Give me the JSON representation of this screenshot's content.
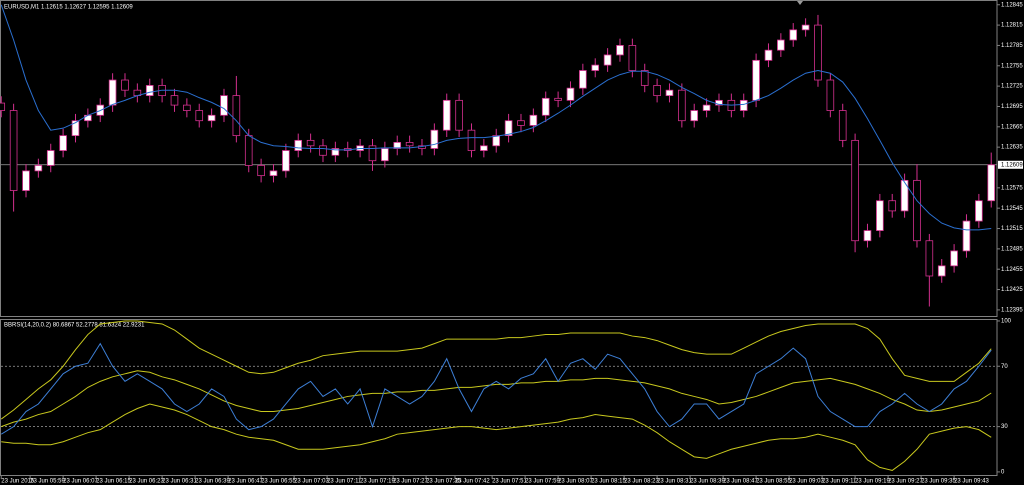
{
  "chart_data": [
    {
      "type": "candlestick",
      "title": "EURUSD,M1  1.12615 1.12627 1.12595 1.12609",
      "x": [
        1,
        4,
        7,
        10,
        13,
        16,
        19,
        22,
        25,
        28,
        31,
        34,
        37,
        40,
        43,
        46,
        49,
        52,
        55,
        58,
        61,
        64,
        67,
        70,
        73,
        76,
        79,
        82,
        85,
        88,
        91,
        94,
        97,
        100,
        103,
        106,
        109,
        112,
        115,
        118,
        121,
        124,
        127,
        130,
        133,
        136,
        139,
        142,
        145,
        148,
        151,
        154,
        157,
        160,
        163,
        166,
        169,
        172,
        175,
        178,
        181,
        184,
        187,
        190,
        193,
        196,
        199,
        202,
        205,
        208,
        211,
        214,
        217,
        220,
        223,
        226,
        229,
        232,
        235,
        238,
        241
      ],
      "open": [
        1.127,
        1.12689,
        1.12571,
        1.126,
        1.12608,
        1.1263,
        1.12652,
        1.12674,
        1.12682,
        1.12697,
        1.12734,
        1.12719,
        1.12711,
        1.12726,
        1.12711,
        1.12697,
        1.12689,
        1.12674,
        1.12682,
        1.12711,
        1.12652,
        1.12608,
        1.12593,
        1.126,
        1.1263,
        1.12645,
        1.12637,
        1.12623,
        1.12633,
        1.1263,
        1.12637,
        1.12615,
        1.12633,
        1.12642,
        1.12637,
        1.12633,
        1.1266,
        1.12704,
        1.1266,
        1.1263,
        1.12637,
        1.12652,
        1.12674,
        1.12667,
        1.12682,
        1.12707,
        1.12704,
        1.12722,
        1.12748,
        1.12756,
        1.12771,
        1.12785,
        1.12748,
        1.12726,
        1.12711,
        1.12719,
        1.12674,
        1.12689,
        1.12697,
        1.12704,
        1.12689,
        1.12704,
        1.12763,
        1.12778,
        1.12793,
        1.12808,
        1.12815,
        1.12734,
        1.12689,
        1.12645,
        1.12497,
        1.12512,
        1.12556,
        1.12541,
        1.12586,
        1.12497,
        1.12445,
        1.1246,
        1.12482,
        1.12526,
        1.12556
      ],
      "high": [
        1.1271,
        1.12699,
        1.1261,
        1.12618,
        1.1264,
        1.12662,
        1.12684,
        1.12692,
        1.12707,
        1.12744,
        1.12744,
        1.12729,
        1.12736,
        1.12736,
        1.12721,
        1.12707,
        1.12699,
        1.12692,
        1.12721,
        1.1274,
        1.12662,
        1.12618,
        1.1261,
        1.1264,
        1.12655,
        1.12655,
        1.12647,
        1.12643,
        1.12643,
        1.12647,
        1.12647,
        1.12643,
        1.12652,
        1.12652,
        1.12647,
        1.1267,
        1.12714,
        1.12714,
        1.1267,
        1.12647,
        1.12662,
        1.12684,
        1.12684,
        1.12692,
        1.12717,
        1.12717,
        1.12732,
        1.12758,
        1.12766,
        1.12781,
        1.12795,
        1.12795,
        1.12758,
        1.12736,
        1.12729,
        1.12729,
        1.12699,
        1.12707,
        1.12714,
        1.12714,
        1.12714,
        1.12773,
        1.12788,
        1.12803,
        1.12818,
        1.12825,
        1.1283,
        1.12744,
        1.12699,
        1.12655,
        1.12522,
        1.12566,
        1.12566,
        1.12596,
        1.1261,
        1.12507,
        1.1247,
        1.12492,
        1.12536,
        1.12566,
        1.12627
      ],
      "low": [
        1.12679,
        1.1254,
        1.12561,
        1.1259,
        1.12598,
        1.1262,
        1.12642,
        1.12664,
        1.12672,
        1.12687,
        1.12709,
        1.12701,
        1.12701,
        1.12701,
        1.12687,
        1.12679,
        1.12664,
        1.12664,
        1.12672,
        1.12642,
        1.12598,
        1.12583,
        1.12583,
        1.1259,
        1.1262,
        1.12627,
        1.12613,
        1.12613,
        1.1262,
        1.1262,
        1.126,
        1.12605,
        1.12623,
        1.12627,
        1.12623,
        1.12623,
        1.1265,
        1.1265,
        1.1262,
        1.1262,
        1.12627,
        1.12642,
        1.12657,
        1.12657,
        1.12672,
        1.12694,
        1.12694,
        1.12712,
        1.12738,
        1.12746,
        1.12761,
        1.12738,
        1.12716,
        1.12701,
        1.12701,
        1.12664,
        1.12664,
        1.12679,
        1.12687,
        1.12679,
        1.12679,
        1.12694,
        1.12753,
        1.12768,
        1.12783,
        1.12798,
        1.12724,
        1.12679,
        1.12635,
        1.1248,
        1.12487,
        1.12502,
        1.12531,
        1.12531,
        1.12487,
        1.124,
        1.12435,
        1.1245,
        1.12472,
        1.12516,
        1.12546
      ],
      "close": [
        1.12689,
        1.12571,
        1.126,
        1.12608,
        1.1263,
        1.12652,
        1.12674,
        1.12682,
        1.12697,
        1.12734,
        1.12719,
        1.12711,
        1.12726,
        1.12711,
        1.12697,
        1.12689,
        1.12674,
        1.12682,
        1.12711,
        1.12652,
        1.12608,
        1.12593,
        1.126,
        1.1263,
        1.12645,
        1.12637,
        1.12623,
        1.12633,
        1.1263,
        1.12637,
        1.12615,
        1.12633,
        1.12642,
        1.12637,
        1.12633,
        1.1266,
        1.12704,
        1.1266,
        1.1263,
        1.12637,
        1.12652,
        1.12674,
        1.12667,
        1.12682,
        1.12707,
        1.12704,
        1.12722,
        1.12748,
        1.12756,
        1.12771,
        1.12785,
        1.12748,
        1.12726,
        1.12711,
        1.12719,
        1.12674,
        1.12689,
        1.12697,
        1.12704,
        1.12689,
        1.12704,
        1.12763,
        1.12778,
        1.12793,
        1.12808,
        1.12815,
        1.12734,
        1.12689,
        1.12645,
        1.12497,
        1.12512,
        1.12556,
        1.12541,
        1.12586,
        1.12497,
        1.12445,
        1.1246,
        1.12482,
        1.12526,
        1.12556,
        1.12609
      ],
      "series": [
        {
          "color": "#2a6fd0",
          "values": [
            1.12845,
            1.12793,
            1.12734,
            1.12689,
            1.1266,
            1.12663,
            1.12671,
            1.12682,
            1.12689,
            1.12698,
            1.12704,
            1.12711,
            1.12716,
            1.12719,
            1.12719,
            1.12716,
            1.12708,
            1.12701,
            1.12692,
            1.12674,
            1.12652,
            1.12642,
            1.12637,
            1.12636,
            1.12634,
            1.12633,
            1.12633,
            1.12631,
            1.12631,
            1.12633,
            1.12633,
            1.12634,
            1.12634,
            1.12634,
            1.12636,
            1.12639,
            1.12645,
            1.12648,
            1.12649,
            1.12649,
            1.12651,
            1.12654,
            1.12658,
            1.12664,
            1.12674,
            1.12685,
            1.12697,
            1.1271,
            1.12722,
            1.12734,
            1.12742,
            1.12747,
            1.12747,
            1.12742,
            1.12734,
            1.12723,
            1.12714,
            1.12704,
            1.12698,
            1.12697,
            1.12698,
            1.12704,
            1.12711,
            1.12722,
            1.12734,
            1.12744,
            1.12748,
            1.12744,
            1.12731,
            1.12707,
            1.12677,
            1.12645,
            1.12612,
            1.12583,
            1.12556,
            1.12537,
            1.12523,
            1.12516,
            1.12513,
            1.12513,
            1.12515
          ]
        }
      ],
      "up_color": "#ffffff",
      "down_color": "#000000",
      "wick_color": "#d4308f",
      "last_price": 1.12609,
      "xlim": [
        0.7,
        242.4
      ],
      "ylim": [
        1.12386,
        1.12852
      ],
      "yticks": [
        1.12845,
        1.12815,
        1.12785,
        1.12755,
        1.12725,
        1.12695,
        1.12665,
        1.12635,
        1.12575,
        1.12545,
        1.12515,
        1.12485,
        1.12455,
        1.12425,
        1.12395
      ],
      "grid": false
    },
    {
      "type": "line",
      "title": "BBRSI(14,20,0.2) 80.6867 52.2778 81.6324 22.9231",
      "x": [
        1,
        4,
        7,
        10,
        13,
        16,
        19,
        22,
        25,
        28,
        31,
        34,
        37,
        40,
        43,
        46,
        49,
        52,
        55,
        58,
        61,
        64,
        67,
        70,
        73,
        76,
        79,
        82,
        85,
        88,
        91,
        94,
        97,
        100,
        103,
        106,
        109,
        112,
        115,
        118,
        121,
        124,
        127,
        130,
        133,
        136,
        139,
        142,
        145,
        148,
        151,
        154,
        157,
        160,
        163,
        166,
        169,
        172,
        175,
        178,
        181,
        184,
        187,
        190,
        193,
        196,
        199,
        202,
        205,
        208,
        211,
        214,
        217,
        220,
        223,
        226,
        229,
        232,
        235,
        238,
        241
      ],
      "series": [
        {
          "color": "#c8c81e",
          "values": [
            35,
            41,
            48,
            55,
            61,
            70,
            81,
            91,
            98,
            99,
            100,
            100,
            99,
            98,
            94,
            88,
            82,
            78,
            74,
            70,
            66,
            65,
            66,
            69,
            72,
            74,
            77,
            78,
            79,
            80,
            80,
            80,
            80,
            81,
            82,
            85,
            88,
            88,
            88,
            88,
            88,
            89,
            89,
            90,
            91,
            91,
            92,
            92,
            92,
            92,
            92,
            90,
            89,
            87,
            84,
            81,
            79,
            78,
            78,
            78,
            82,
            86,
            90,
            93,
            95,
            97,
            98,
            98,
            98,
            98,
            95,
            88,
            75,
            64,
            62,
            60,
            60,
            60,
            66,
            72,
            81.63
          ]
        },
        {
          "color": "#c8c81e",
          "values": [
            30,
            33,
            35,
            38,
            40,
            45,
            50,
            56,
            60,
            63,
            65,
            67,
            66,
            63,
            61,
            58,
            55,
            51,
            47,
            44,
            42,
            40,
            40,
            41,
            42,
            44,
            46,
            48,
            50,
            51,
            52,
            52,
            53,
            53,
            54,
            54,
            55,
            56,
            56,
            57,
            58,
            58,
            59,
            59,
            60,
            60,
            61,
            61,
            62,
            62,
            61,
            60,
            59,
            57,
            55,
            52,
            50,
            48,
            45,
            46,
            48,
            50,
            53,
            56,
            59,
            60,
            61,
            62,
            60,
            58,
            55,
            52,
            48,
            45,
            41,
            40,
            41,
            43,
            45,
            47,
            52.28
          ]
        },
        {
          "color": "#c8c81e",
          "values": [
            20,
            19,
            19,
            18,
            18,
            20,
            23,
            26,
            28,
            33,
            38,
            42,
            45,
            43,
            41,
            38,
            34,
            30,
            28,
            25,
            23,
            22,
            21,
            18,
            15,
            15,
            15,
            16,
            17,
            18,
            20,
            22,
            25,
            26,
            27,
            28,
            29,
            30,
            30,
            29,
            28,
            29,
            30,
            31,
            32,
            33,
            35,
            36,
            38,
            37,
            36,
            35,
            31,
            26,
            20,
            15,
            10,
            9,
            12,
            15,
            17,
            19,
            21,
            22,
            22,
            23,
            25,
            23,
            21,
            18,
            8,
            3,
            1,
            7,
            15,
            25,
            27,
            29,
            30,
            28,
            22.92
          ]
        },
        {
          "color": "#3d7fd6",
          "values": [
            25,
            30,
            40,
            45,
            55,
            65,
            70,
            72,
            85,
            70,
            60,
            65,
            60,
            55,
            45,
            40,
            45,
            55,
            50,
            35,
            28,
            30,
            35,
            45,
            55,
            60,
            50,
            55,
            45,
            55,
            30,
            55,
            50,
            45,
            50,
            60,
            75,
            55,
            40,
            55,
            60,
            55,
            62,
            65,
            75,
            60,
            72,
            75,
            68,
            78,
            75,
            65,
            55,
            40,
            30,
            35,
            45,
            45,
            35,
            40,
            45,
            65,
            70,
            75,
            82,
            75,
            50,
            40,
            35,
            30,
            30,
            40,
            45,
            52,
            45,
            40,
            45,
            55,
            60,
            70,
            80.69
          ]
        }
      ],
      "levels": [
        70,
        30
      ],
      "xlim": [
        0.7,
        242.4
      ],
      "ylim": [
        -2.7,
        101.3
      ],
      "yticks": [
        100,
        70,
        30,
        0
      ],
      "xticks": [
        {
          "value": 1,
          "label": "23 Jun 2015"
        },
        {
          "value": 8,
          "label": "23 Jun 05:59"
        },
        {
          "value": 16,
          "label": "23 Jun 06:07"
        },
        {
          "value": 24,
          "label": "23 Jun 06:15"
        },
        {
          "value": 32,
          "label": "23 Jun 06:23"
        },
        {
          "value": 40,
          "label": "23 Jun 06:31"
        },
        {
          "value": 48,
          "label": "23 Jun 06:39"
        },
        {
          "value": 56,
          "label": "23 Jun 06:47"
        },
        {
          "value": 64,
          "label": "23 Jun 06:55"
        },
        {
          "value": 72,
          "label": "23 Jun 07:03"
        },
        {
          "value": 80,
          "label": "23 Jun 07:11"
        },
        {
          "value": 88,
          "label": "23 Jun 07:19"
        },
        {
          "value": 96,
          "label": "23 Jun 07:27"
        },
        {
          "value": 104,
          "label": "23 Jun 07:35"
        },
        {
          "value": 111,
          "label": "23 Jun 07:42"
        },
        {
          "value": 120,
          "label": "23 Jun 07:51"
        },
        {
          "value": 128,
          "label": "23 Jun 07:59"
        },
        {
          "value": 136,
          "label": "23 Jun 08:07"
        },
        {
          "value": 144,
          "label": "23 Jun 08:15"
        },
        {
          "value": 152,
          "label": "23 Jun 08:23"
        },
        {
          "value": 160,
          "label": "23 Jun 08:31"
        },
        {
          "value": 168,
          "label": "23 Jun 08:39"
        },
        {
          "value": 176,
          "label": "23 Jun 08:47"
        },
        {
          "value": 184,
          "label": "23 Jun 08:55"
        },
        {
          "value": 192,
          "label": "23 Jun 09:03"
        },
        {
          "value": 200,
          "label": "23 Jun 09:11"
        },
        {
          "value": 208,
          "label": "23 Jun 09:19"
        },
        {
          "value": 216,
          "label": "23 Jun 09:27"
        },
        {
          "value": 224,
          "label": "23 Jun 09:35"
        },
        {
          "value": 232,
          "label": "23 Jun 09:43"
        }
      ],
      "grid": false
    }
  ]
}
